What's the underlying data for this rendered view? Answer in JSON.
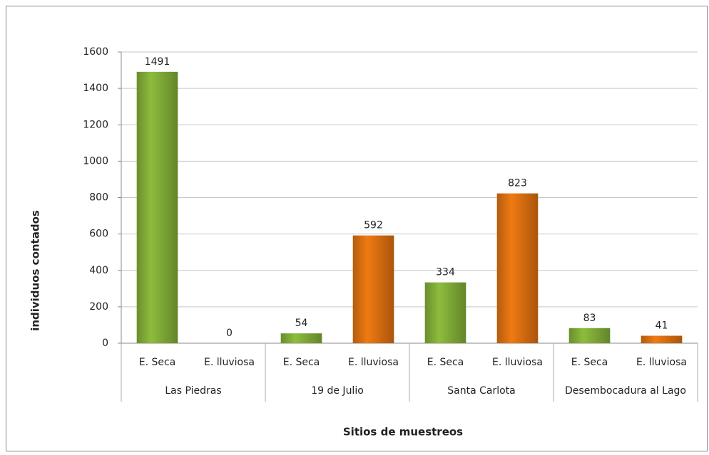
{
  "chart_data": {
    "type": "bar",
    "y_label": "individuos  contados",
    "x_label": "Sitios de muestreos",
    "categories": [
      "Las Piedras",
      "19 de Julio",
      "Santa Carlota",
      "Desembocadura al Lago"
    ],
    "series": [
      {
        "name": "E. Seca",
        "color": "#8dbd3c",
        "values": [
          1491,
          54,
          334,
          83
        ]
      },
      {
        "name": "E. lluviosa",
        "color": "#f07a12",
        "values": [
          0,
          592,
          823,
          41
        ]
      }
    ],
    "ylim": [
      0,
      1600
    ],
    "yticks": [
      0,
      200,
      400,
      600,
      800,
      1000,
      1200,
      1400,
      1600
    ],
    "grid": true
  }
}
